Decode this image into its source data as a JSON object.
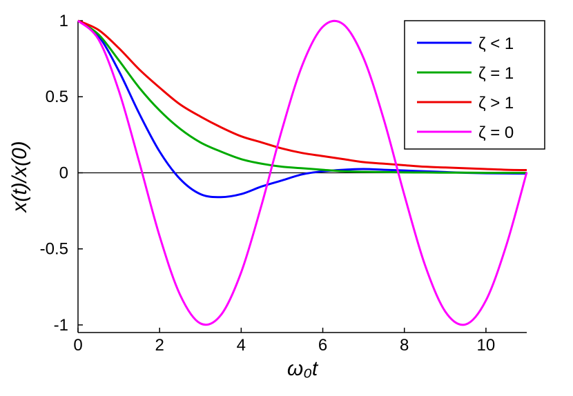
{
  "chart_data": {
    "type": "line",
    "xlabel": "ω₀t",
    "ylabel": "x(t)/x(0)",
    "xlim": [
      0,
      11
    ],
    "ylim": [
      -1.05,
      1.0
    ],
    "x_ticks": [
      0,
      2,
      4,
      6,
      8,
      10
    ],
    "x_tick_labels": [
      "0",
      "2",
      "4",
      "6",
      "8",
      "10"
    ],
    "y_ticks": [
      -1,
      -0.5,
      0,
      0.5,
      1
    ],
    "y_tick_labels": [
      "-1",
      "-0.5",
      "0",
      "0.5",
      "1"
    ],
    "grid": false,
    "zero_line": true,
    "legend_position": "top-right",
    "x": [
      0,
      0.5,
      1,
      1.5,
      2,
      2.5,
      3,
      3.5,
      4,
      4.5,
      5,
      5.5,
      6,
      6.5,
      7,
      7.5,
      8,
      8.5,
      9,
      9.5,
      10,
      10.5,
      11
    ],
    "series": [
      {
        "name": "ζ < 1",
        "color": "#0000ff",
        "values": [
          1.0,
          0.9,
          0.67,
          0.39,
          0.14,
          -0.04,
          -0.14,
          -0.16,
          -0.14,
          -0.09,
          -0.05,
          -0.01,
          0.01,
          0.02,
          0.025,
          0.02,
          0.015,
          0.01,
          0.005,
          0.0,
          -0.003,
          -0.004,
          -0.005
        ]
      },
      {
        "name": "ζ = 1",
        "color": "#00aa00",
        "values": [
          1.0,
          0.91,
          0.74,
          0.56,
          0.41,
          0.29,
          0.2,
          0.14,
          0.09,
          0.06,
          0.04,
          0.03,
          0.02,
          0.01,
          0.007,
          0.005,
          0.003,
          0.002,
          0.001,
          0.001,
          0.0,
          0.0,
          0.0
        ]
      },
      {
        "name": "ζ > 1",
        "color": "#ee0000",
        "values": [
          1.0,
          0.94,
          0.82,
          0.68,
          0.56,
          0.45,
          0.37,
          0.3,
          0.24,
          0.2,
          0.16,
          0.13,
          0.11,
          0.09,
          0.07,
          0.06,
          0.05,
          0.04,
          0.035,
          0.03,
          0.025,
          0.02,
          0.018
        ]
      },
      {
        "name": "ζ = 0",
        "color": "#ff00ff",
        "values": [
          1.0,
          0.878,
          0.54,
          0.071,
          -0.416,
          -0.801,
          -0.99,
          -0.936,
          -0.654,
          -0.211,
          0.284,
          0.709,
          0.96,
          0.977,
          0.754,
          0.347,
          -0.146,
          -0.602,
          -0.911,
          -0.997,
          -0.839,
          -0.476,
          0.004
        ]
      }
    ]
  }
}
